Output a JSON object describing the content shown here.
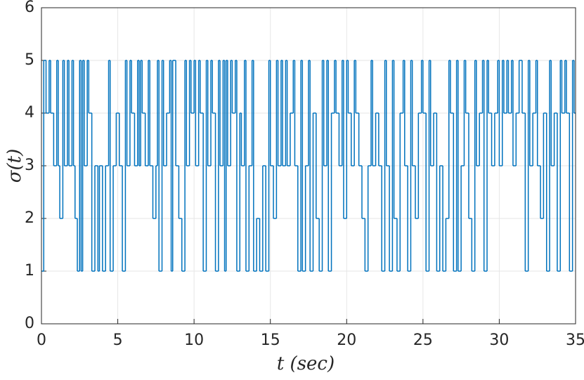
{
  "chart_data": {
    "type": "step",
    "xlabel": "t (sec)",
    "ylabel": "σ(t)",
    "xlim": [
      0,
      35
    ],
    "ylim": [
      0,
      6
    ],
    "xticks": [
      0,
      5,
      10,
      15,
      20,
      25,
      30,
      35
    ],
    "yticks": [
      0,
      1,
      2,
      3,
      4,
      5,
      6
    ],
    "grid": true,
    "color": "#0072bd",
    "x": [
      0,
      0.15,
      0.3,
      0.5,
      0.6,
      0.8,
      1,
      1.1,
      1.2,
      1.4,
      1.5,
      1.7,
      1.8,
      2,
      2.1,
      2.2,
      2.35,
      2.5,
      2.6,
      2.7,
      2.8,
      3,
      3.1,
      3.3,
      3.5,
      3.7,
      3.8,
      4,
      4.2,
      4.4,
      4.5,
      4.7,
      4.9,
      5.1,
      5.3,
      5.5,
      5.6,
      5.8,
      5.9,
      6.1,
      6.3,
      6.4,
      6.5,
      6.6,
      6.8,
      7,
      7.1,
      7.3,
      7.5,
      7.6,
      7.7,
      7.9,
      8,
      8.2,
      8.4,
      8.5,
      8.6,
      8.8,
      9,
      9.2,
      9.4,
      9.5,
      9.7,
      9.8,
      10,
      10.1,
      10.3,
      10.4,
      10.6,
      10.8,
      10.9,
      11.1,
      11.2,
      11.4,
      11.6,
      11.7,
      11.9,
      12,
      12.1,
      12.2,
      12.4,
      12.5,
      12.7,
      12.8,
      13,
      13.1,
      13.3,
      13.4,
      13.6,
      13.8,
      13.9,
      14.1,
      14.3,
      14.5,
      14.7,
      14.9,
      15,
      15.2,
      15.4,
      15.5,
      15.7,
      15.8,
      16,
      16.1,
      16.3,
      16.5,
      16.6,
      16.8,
      17,
      17.1,
      17.3,
      17.5,
      17.6,
      17.8,
      18,
      18.2,
      18.4,
      18.5,
      18.7,
      18.8,
      19,
      19.2,
      19.3,
      19.5,
      19.7,
      19.8,
      20,
      20.1,
      20.3,
      20.5,
      20.6,
      20.8,
      21,
      21.2,
      21.4,
      21.6,
      21.7,
      21.9,
      22.1,
      22.3,
      22.5,
      22.6,
      22.8,
      23,
      23.1,
      23.3,
      23.5,
      23.7,
      23.8,
      24,
      24.2,
      24.3,
      24.5,
      24.7,
      24.9,
      25,
      25.2,
      25.4,
      25.5,
      25.7,
      25.9,
      26.1,
      26.3,
      26.5,
      26.7,
      26.8,
      27,
      27.2,
      27.3,
      27.5,
      27.7,
      27.8,
      28,
      28.2,
      28.4,
      28.5,
      28.7,
      28.9,
      29,
      29.2,
      29.3,
      29.5,
      29.7,
      29.9,
      30,
      30.2,
      30.3,
      30.5,
      30.6,
      30.8,
      30.9,
      31.1,
      31.3,
      31.5,
      31.7,
      31.9,
      32,
      32.2,
      32.4,
      32.5,
      32.7,
      32.9,
      33.1,
      33.3,
      33.4,
      33.6,
      33.8,
      34,
      34.1,
      34.3,
      34.4,
      34.6,
      34.8,
      34.9
    ],
    "values": [
      1,
      5,
      4,
      5,
      4,
      3,
      5,
      3,
      2,
      5,
      3,
      5,
      3,
      5,
      3,
      2,
      1,
      5,
      1,
      5,
      3,
      5,
      4,
      1,
      3,
      1,
      3,
      1,
      3,
      5,
      1,
      3,
      4,
      3,
      1,
      5,
      3,
      5,
      4,
      3,
      5,
      3,
      5,
      4,
      3,
      5,
      3,
      2,
      3,
      5,
      1,
      5,
      3,
      4,
      5,
      1,
      5,
      3,
      2,
      1,
      5,
      3,
      5,
      4,
      5,
      3,
      5,
      4,
      1,
      5,
      3,
      5,
      4,
      1,
      5,
      3,
      5,
      1,
      5,
      3,
      5,
      4,
      5,
      1,
      4,
      3,
      5,
      1,
      3,
      5,
      1,
      2,
      1,
      3,
      1,
      5,
      3,
      2,
      5,
      3,
      5,
      3,
      5,
      3,
      4,
      5,
      3,
      1,
      5,
      1,
      3,
      5,
      1,
      4,
      2,
      1,
      5,
      3,
      5,
      1,
      4,
      5,
      4,
      3,
      5,
      2,
      5,
      4,
      3,
      5,
      4,
      3,
      2,
      1,
      3,
      5,
      3,
      4,
      3,
      1,
      5,
      3,
      1,
      5,
      2,
      1,
      4,
      5,
      3,
      1,
      5,
      3,
      2,
      4,
      5,
      4,
      1,
      5,
      3,
      4,
      1,
      3,
      1,
      2,
      5,
      4,
      1,
      5,
      1,
      3,
      5,
      4,
      2,
      1,
      5,
      3,
      4,
      5,
      1,
      5,
      4,
      3,
      4,
      5,
      3,
      5,
      4,
      5,
      4,
      5,
      3,
      4,
      5,
      4,
      1,
      5,
      3,
      4,
      5,
      3,
      2,
      4,
      1,
      5,
      3,
      4,
      1,
      5,
      4,
      5,
      4,
      1,
      5,
      4
    ]
  }
}
